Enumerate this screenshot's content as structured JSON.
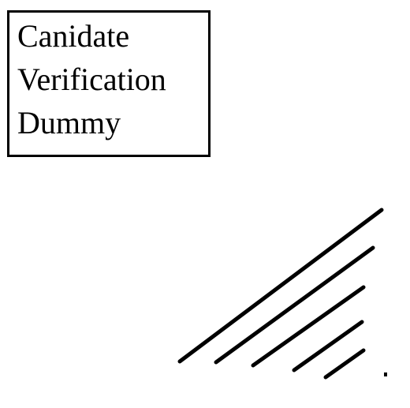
{
  "label": {
    "lines": [
      "Canidate",
      "Verification",
      "Dummy"
    ]
  },
  "colors": {
    "ink": "#000000",
    "background": "#ffffff"
  }
}
